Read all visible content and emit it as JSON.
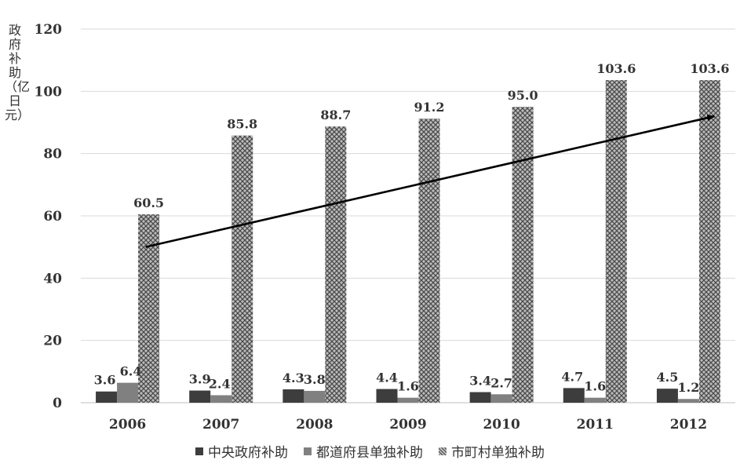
{
  "chart_data": {
    "type": "bar",
    "ylabel": "政府补助（亿日元）",
    "ylim": [
      0,
      120
    ],
    "yticks": [
      0,
      20,
      40,
      60,
      80,
      100,
      120
    ],
    "grid": true,
    "legend_position": "bottom",
    "categories": [
      "2006",
      "2007",
      "2008",
      "2009",
      "2010",
      "2011",
      "2012"
    ],
    "series": [
      {
        "name": "中央政府补助",
        "values": [
          3.6,
          3.9,
          4.3,
          4.4,
          3.4,
          4.7,
          4.5
        ],
        "labels": [
          "3.6",
          "3.9",
          "4.3",
          "4.4",
          "3.4",
          "4.7",
          "4.5"
        ],
        "color": "#3d3d3d",
        "pattern": "solid"
      },
      {
        "name": "都道府县单独补助",
        "values": [
          6.4,
          2.4,
          3.8,
          1.6,
          2.7,
          1.6,
          1.2
        ],
        "labels": [
          "6.4",
          "2.4",
          "3.8",
          "1.6",
          "2.7",
          "1.6",
          "1.2"
        ],
        "color": "#808080",
        "pattern": "solid"
      },
      {
        "name": "市町村单独补助",
        "values": [
          60.5,
          85.8,
          88.7,
          91.2,
          95.0,
          103.6,
          103.6
        ],
        "labels": [
          "60.5",
          "85.8",
          "88.7",
          "91.2",
          "95.0",
          "103.6",
          "103.6"
        ],
        "color": "#9a9a9a",
        "pattern": "crosshatch"
      }
    ],
    "annotations": [
      {
        "type": "trend-arrow",
        "from": {
          "x": "2006",
          "y": 50
        },
        "to": {
          "x": "2012",
          "y": 92
        }
      }
    ]
  }
}
